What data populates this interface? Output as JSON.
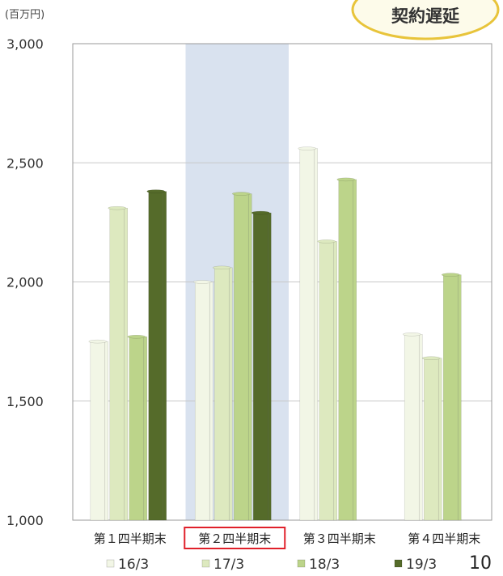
{
  "callout": {
    "text": "契約遅延"
  },
  "page_number": "10",
  "chart_data": {
    "type": "bar",
    "unit_label": "(百万円)",
    "ylim": [
      1000,
      3000
    ],
    "yticks": [
      1000,
      1500,
      2000,
      2500,
      3000
    ],
    "ytick_labels": [
      "1,000",
      "1,500",
      "2,000",
      "2,500",
      "3,000"
    ],
    "grid": true,
    "legend_placement": "bottom",
    "highlight_category": 1,
    "highlight_color": "#d9e2ef",
    "highlight_box_color": "#e0202a",
    "categories": [
      "第１四半期末",
      "第２四半期末",
      "第３四半期末",
      "第４四半期末"
    ],
    "series": [
      {
        "name": "16/3",
        "color": "#f2f6e6",
        "values": [
          1750,
          2000,
          2560,
          1780
        ]
      },
      {
        "name": "17/3",
        "color": "#dde9bf",
        "values": [
          2310,
          2060,
          2170,
          1680
        ]
      },
      {
        "name": "18/3",
        "color": "#bcd48a",
        "values": [
          1770,
          2370,
          2430,
          2030
        ]
      },
      {
        "name": "19/3",
        "color": "#556b2a",
        "values": [
          2380,
          2290,
          null,
          null
        ]
      }
    ]
  }
}
